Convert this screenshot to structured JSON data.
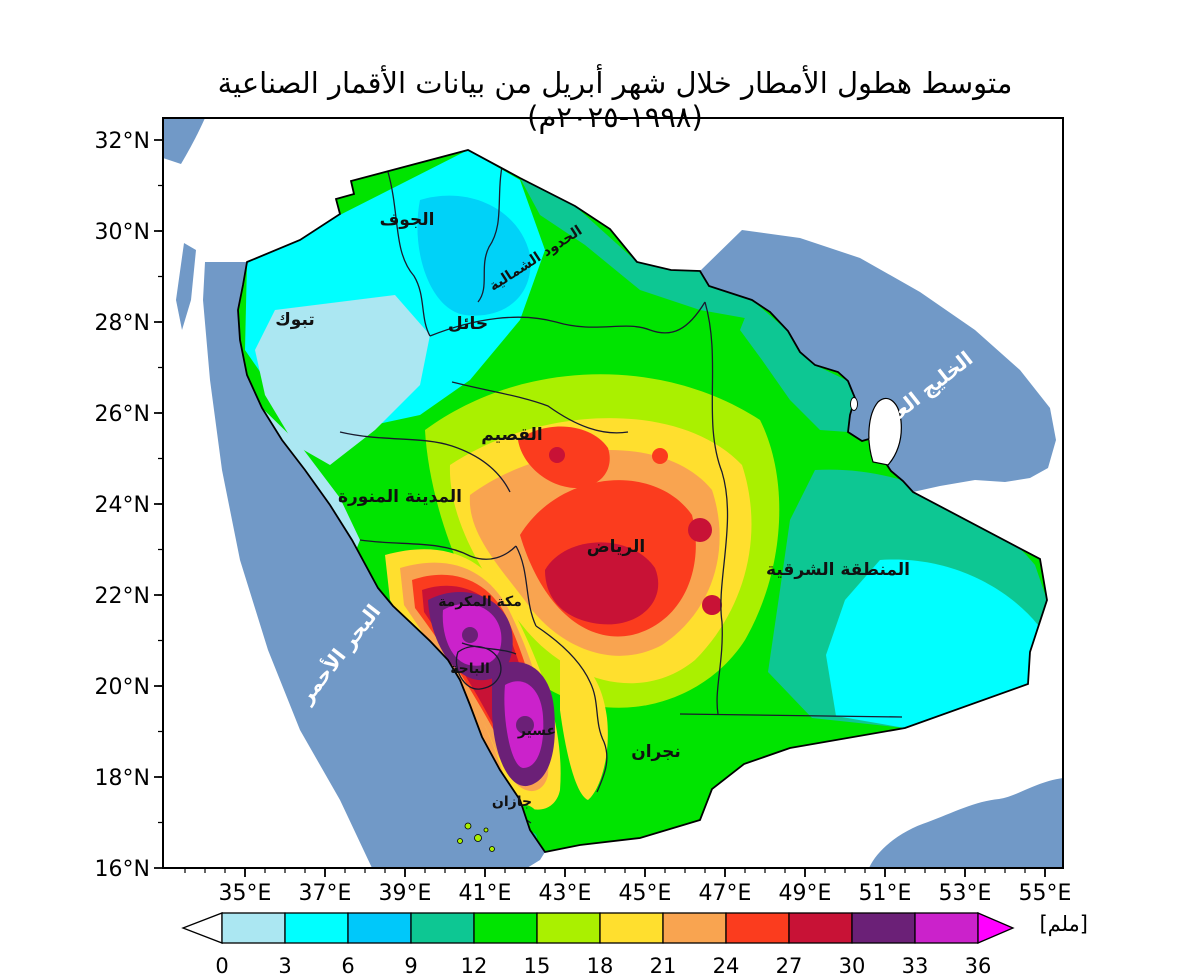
{
  "title": "متوسط هطول الأمطار خلال شهر أبريل من بيانات الأقمار الصناعية (١٩٩٨-٢٠٢٥م)",
  "axes": {
    "x_ticks": [
      "35°E",
      "37°E",
      "39°E",
      "41°E",
      "43°E",
      "45°E",
      "47°E",
      "49°E",
      "51°E",
      "53°E",
      "55°E"
    ],
    "y_ticks": [
      "32°N",
      "30°N",
      "28°N",
      "26°N",
      "24°N",
      "22°N",
      "20°N",
      "18°N",
      "16°N"
    ]
  },
  "regions": [
    {
      "name": "الجوف"
    },
    {
      "name": "الحدود الشمالية"
    },
    {
      "name": "تبوك"
    },
    {
      "name": "حائل"
    },
    {
      "name": "القصيم"
    },
    {
      "name": "المدينة المنورة"
    },
    {
      "name": "الرياض"
    },
    {
      "name": "المنطقة الشرقية"
    },
    {
      "name": "مكة المكرمة"
    },
    {
      "name": "الباحة"
    },
    {
      "name": "عسير"
    },
    {
      "name": "نجران"
    },
    {
      "name": "جازان"
    }
  ],
  "seas": [
    {
      "name": "البحر الأحمر"
    },
    {
      "name": "الخليج العربي"
    }
  ],
  "colorbar": {
    "unit": "[ملم]",
    "ticks": [
      "0",
      "3",
      "6",
      "9",
      "12",
      "15",
      "18",
      "21",
      "24",
      "27",
      "30",
      "33",
      "36"
    ],
    "under_color": "#FFFFFF",
    "over_color": "#FF00FF",
    "cell_colors": [
      "#ABE7F2",
      "#00FFFF",
      "#00C8FA",
      "#0DC793",
      "#00E400",
      "#AAF000",
      "#FFDF2E",
      "#F9A450",
      "#FB3C1E",
      "#C81236",
      "#6B2077",
      "#CB22CB"
    ]
  },
  "chart_data": {
    "type": "heatmap",
    "subtype": "filled-contour-precipitation-map",
    "title": "متوسط هطول الأمطار خلال شهر أبريل من بيانات الأقمار الصناعية (١٩٩٨-٢٠٢٥م)",
    "unit_label": "[ملم]",
    "levels_mm": [
      0,
      3,
      6,
      9,
      12,
      15,
      18,
      21,
      24,
      27,
      30,
      33,
      36
    ],
    "palette": [
      "#FFFFFF",
      "#ABE7F2",
      "#00FFFF",
      "#00C8FA",
      "#0DC793",
      "#00E400",
      "#AAF000",
      "#FFDF2E",
      "#F9A450",
      "#FB3C1E",
      "#C81236",
      "#6B2077",
      "#CB22CB",
      "#FF00FF"
    ],
    "lon_range_deg_e": [
      33,
      55.5
    ],
    "lat_range_deg_n": [
      16,
      32.5
    ],
    "grid": false,
    "legend_position": "bottom-colorbar",
    "approx_region_values_mm": {
      "تبوك": 3,
      "الجوف": 5,
      "الحدود الشمالية": 8,
      "حائل": 8,
      "القصيم": 22,
      "المدينة المنورة": 12,
      "الرياض": 27,
      "المنطقة الشرقية": 12,
      "مكة المكرمة": 31,
      "الباحة": 33,
      "عسير": 34,
      "نجران": 15,
      "جازان": 21
    },
    "ocean_color": "#7199C7"
  }
}
